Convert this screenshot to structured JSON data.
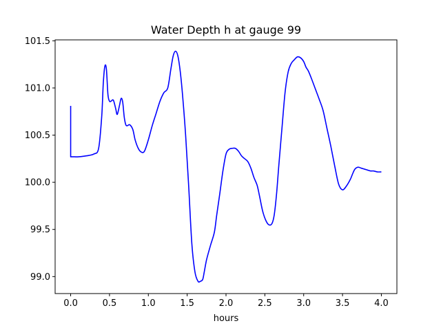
{
  "chart_data": {
    "type": "line",
    "title": "Water Depth h at gauge 99",
    "xlabel": "hours",
    "ylabel": "",
    "xlim": [
      -0.2,
      4.2
    ],
    "ylim": [
      98.82,
      101.51
    ],
    "grid": false,
    "x_ticks": [
      0.0,
      0.5,
      1.0,
      1.5,
      2.0,
      2.5,
      3.0,
      3.5,
      4.0
    ],
    "x_tick_labels": [
      "0.0",
      "0.5",
      "1.0",
      "1.5",
      "2.0",
      "2.5",
      "3.0",
      "3.5",
      "4.0"
    ],
    "y_ticks": [
      99.0,
      99.5,
      100.0,
      100.5,
      101.0,
      101.5
    ],
    "y_tick_labels": [
      "99.0",
      "99.5",
      "100.0",
      "100.5",
      "101.0",
      "101.5"
    ],
    "series": [
      {
        "color": "#0000ff",
        "x": [
          0.0,
          0.0,
          0.05,
          0.1,
          0.2,
          0.3,
          0.36,
          0.4,
          0.42,
          0.44,
          0.46,
          0.48,
          0.5,
          0.52,
          0.55,
          0.58,
          0.6,
          0.63,
          0.65,
          0.67,
          0.69,
          0.71,
          0.73,
          0.76,
          0.8,
          0.83,
          0.87,
          0.91,
          0.95,
          1.0,
          1.05,
          1.1,
          1.15,
          1.2,
          1.25,
          1.29,
          1.32,
          1.35,
          1.38,
          1.41,
          1.44,
          1.48,
          1.52,
          1.56,
          1.6,
          1.64,
          1.67,
          1.7,
          1.72,
          1.75,
          1.8,
          1.85,
          1.88,
          1.92,
          1.96,
          2.0,
          2.04,
          2.08,
          2.12,
          2.16,
          2.2,
          2.24,
          2.28,
          2.32,
          2.36,
          2.4,
          2.43,
          2.47,
          2.51,
          2.55,
          2.59,
          2.62,
          2.65,
          2.68,
          2.72,
          2.76,
          2.8,
          2.84,
          2.88,
          2.92,
          2.96,
          3.0,
          3.03,
          3.06,
          3.1,
          3.15,
          3.2,
          3.25,
          3.3,
          3.35,
          3.4,
          3.45,
          3.5,
          3.55,
          3.6,
          3.63,
          3.66,
          3.7,
          3.74,
          3.78,
          3.82,
          3.86,
          3.9,
          3.95,
          4.0
        ],
        "values": [
          100.81,
          100.27,
          100.27,
          100.27,
          100.28,
          100.3,
          100.36,
          100.7,
          101.05,
          101.23,
          101.2,
          100.93,
          100.86,
          100.86,
          100.87,
          100.78,
          100.72,
          100.82,
          100.89,
          100.85,
          100.69,
          100.61,
          100.6,
          100.61,
          100.56,
          100.45,
          100.36,
          100.32,
          100.33,
          100.45,
          100.6,
          100.73,
          100.86,
          100.95,
          101.0,
          101.2,
          101.34,
          101.39,
          101.34,
          101.18,
          100.93,
          100.5,
          99.95,
          99.35,
          99.05,
          98.95,
          98.95,
          98.97,
          99.05,
          99.18,
          99.33,
          99.47,
          99.65,
          99.88,
          100.12,
          100.3,
          100.35,
          100.36,
          100.36,
          100.33,
          100.28,
          100.25,
          100.22,
          100.15,
          100.05,
          99.97,
          99.86,
          99.7,
          99.6,
          99.55,
          99.56,
          99.65,
          99.87,
          100.18,
          100.57,
          100.95,
          101.17,
          101.26,
          101.3,
          101.33,
          101.32,
          101.28,
          101.22,
          101.18,
          101.1,
          100.99,
          100.88,
          100.76,
          100.57,
          100.38,
          100.17,
          99.98,
          99.92,
          99.96,
          100.03,
          100.09,
          100.14,
          100.16,
          100.15,
          100.14,
          100.13,
          100.12,
          100.12,
          100.11,
          100.11
        ]
      }
    ]
  }
}
